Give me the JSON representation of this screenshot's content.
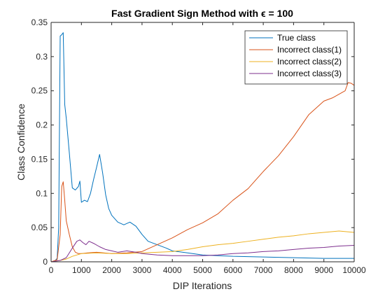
{
  "chart_data": {
    "type": "line",
    "title": "Fast Gradient Sign Method with ϵ = 100",
    "xlabel": "DIP Iterations",
    "ylabel": "Class Confidence",
    "xlim": [
      0,
      10000
    ],
    "ylim": [
      0,
      0.35
    ],
    "xticks": [
      0,
      1000,
      2000,
      3000,
      4000,
      5000,
      6000,
      7000,
      8000,
      9000,
      10000
    ],
    "xtick_labels": [
      "0",
      "1000",
      "2000",
      "3000",
      "4000",
      "5000",
      "6000",
      "7000",
      "8000",
      "9000",
      "10000"
    ],
    "yticks": [
      0,
      0.05,
      0.1,
      0.15,
      0.2,
      0.25,
      0.3,
      0.35
    ],
    "ytick_labels": [
      "0",
      "0.05",
      "0.1",
      "0.15",
      "0.2",
      "0.25",
      "0.3",
      "0.35"
    ],
    "grid": false,
    "legend_position": "top-right",
    "series": [
      {
        "name": "True class",
        "color": "#0072BD",
        "x": [
          0,
          100,
          200,
          250,
          300,
          350,
          400,
          450,
          500,
          600,
          700,
          800,
          900,
          950,
          1000,
          1100,
          1200,
          1300,
          1400,
          1500,
          1600,
          1700,
          1800,
          1900,
          2000,
          2200,
          2400,
          2600,
          2800,
          3000,
          3200,
          3500,
          3800,
          4000,
          4500,
          5000,
          5500,
          6000,
          7000,
          8000,
          9000,
          10000
        ],
        "y": [
          0.0,
          0.0,
          0.005,
          0.05,
          0.33,
          0.332,
          0.335,
          0.23,
          0.21,
          0.16,
          0.108,
          0.105,
          0.11,
          0.118,
          0.087,
          0.09,
          0.088,
          0.1,
          0.12,
          0.138,
          0.157,
          0.13,
          0.098,
          0.078,
          0.068,
          0.058,
          0.054,
          0.058,
          0.052,
          0.04,
          0.03,
          0.025,
          0.02,
          0.016,
          0.013,
          0.01,
          0.009,
          0.008,
          0.007,
          0.006,
          0.005,
          0.005
        ]
      },
      {
        "name": "Incorrect class(1)",
        "color": "#D95319",
        "x": [
          0,
          200,
          300,
          350,
          400,
          450,
          500,
          600,
          700,
          800,
          900,
          1000,
          1200,
          1500,
          2000,
          2500,
          3000,
          3500,
          4000,
          4500,
          5000,
          5500,
          6000,
          6500,
          7000,
          7500,
          8000,
          8500,
          9000,
          9300,
          9500,
          9700,
          9800,
          9900,
          10000
        ],
        "y": [
          0.0,
          0.003,
          0.04,
          0.11,
          0.117,
          0.09,
          0.06,
          0.04,
          0.022,
          0.014,
          0.012,
          0.012,
          0.013,
          0.014,
          0.012,
          0.013,
          0.015,
          0.025,
          0.035,
          0.047,
          0.057,
          0.07,
          0.09,
          0.107,
          0.132,
          0.155,
          0.183,
          0.215,
          0.235,
          0.24,
          0.245,
          0.25,
          0.262,
          0.261,
          0.258
        ]
      },
      {
        "name": "Incorrect class(2)",
        "color": "#EDB120",
        "x": [
          0,
          300,
          500,
          700,
          1000,
          1500,
          2000,
          2500,
          3000,
          3500,
          4000,
          4500,
          5000,
          5500,
          6000,
          6500,
          7000,
          7500,
          8000,
          8500,
          9000,
          9500,
          10000
        ],
        "y": [
          0.0,
          0.002,
          0.004,
          0.008,
          0.012,
          0.013,
          0.012,
          0.012,
          0.013,
          0.014,
          0.015,
          0.018,
          0.022,
          0.025,
          0.027,
          0.03,
          0.033,
          0.036,
          0.038,
          0.041,
          0.043,
          0.045,
          0.043
        ]
      },
      {
        "name": "Incorrect class(3)",
        "color": "#7E2F8E",
        "x": [
          0,
          300,
          500,
          700,
          850,
          950,
          1050,
          1150,
          1250,
          1400,
          1600,
          1800,
          2000,
          2200,
          2500,
          2800,
          3000,
          3500,
          4000,
          4500,
          5000,
          5500,
          6000,
          6500,
          7000,
          7500,
          8000,
          8500,
          9000,
          9500,
          10000
        ],
        "y": [
          0.0,
          0.002,
          0.006,
          0.02,
          0.03,
          0.032,
          0.028,
          0.025,
          0.03,
          0.027,
          0.022,
          0.018,
          0.016,
          0.014,
          0.016,
          0.014,
          0.012,
          0.01,
          0.009,
          0.009,
          0.009,
          0.01,
          0.012,
          0.013,
          0.015,
          0.016,
          0.018,
          0.02,
          0.021,
          0.023,
          0.024
        ]
      }
    ]
  }
}
